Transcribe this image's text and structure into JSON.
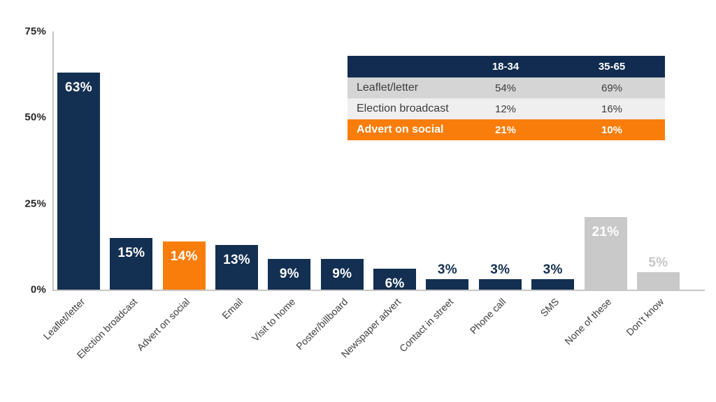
{
  "colors": {
    "navy": "#132f51",
    "orange": "#f97d0b",
    "gray": "#c9c9c9",
    "axis": "#c6c6c6",
    "gray_label_text": "#c6c6c6",
    "table_header_bg": "#112c50",
    "table_row1_bg": "#d5d5d5",
    "table_row2_bg": "#efefef",
    "table_row3_bg": "#f97d0b",
    "table_text": "#3c3c3c"
  },
  "chart_data": {
    "type": "bar",
    "title": "",
    "xlabel": "",
    "ylabel": "",
    "ylim": [
      0,
      75
    ],
    "grid": false,
    "yticks": [
      {
        "label": "0%",
        "value": 0
      },
      {
        "label": "25%",
        "value": 25
      },
      {
        "label": "50%",
        "value": 50
      },
      {
        "label": "75%",
        "value": 75
      }
    ],
    "categories": [
      "Leaflet/letter",
      "Election broadcast",
      "Advert on social",
      "Email",
      "Visit to home",
      "Poster/billboard",
      "Newspaper advert",
      "Contact in street",
      "Phone call",
      "SMS",
      "None of these",
      "Don't know"
    ],
    "values": [
      63,
      15,
      14,
      13,
      9,
      9,
      6,
      3,
      3,
      3,
      21,
      5
    ],
    "value_labels": [
      "63%",
      "15%",
      "14%",
      "13%",
      "9%",
      "9%",
      "6%",
      "3%",
      "3%",
      "3%",
      "21%",
      "5%"
    ],
    "bar_colors": [
      "navy",
      "navy",
      "orange",
      "navy",
      "navy",
      "navy",
      "navy",
      "navy",
      "navy",
      "navy",
      "gray",
      "gray"
    ],
    "table": {
      "corner_label": "",
      "columns": [
        "18-34",
        "35-65"
      ],
      "rows": [
        {
          "label": "Leaflet/letter",
          "values": [
            "54%",
            "69%"
          ],
          "style": "row1"
        },
        {
          "label": "Election broadcast",
          "values": [
            "12%",
            "16%"
          ],
          "style": "row2"
        },
        {
          "label": "Advert on social",
          "values": [
            "21%",
            "10%"
          ],
          "style": "row3"
        }
      ]
    }
  }
}
